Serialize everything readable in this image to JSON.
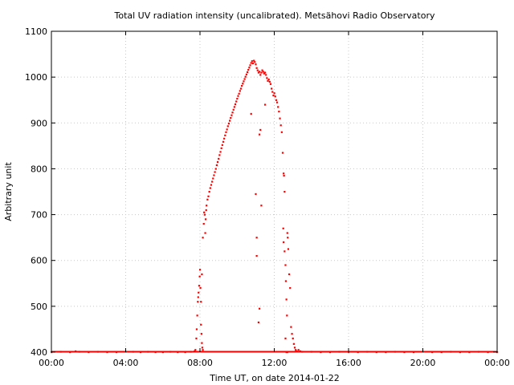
{
  "chart_data": {
    "type": "scatter",
    "title": "Total UV radiation intensity (uncalibrated). Metsähovi Radio Observatory",
    "xlabel": "Time UT, on date 2014-01-22",
    "ylabel": "Arbitrary unit",
    "xlim": [
      0,
      24
    ],
    "ylim": [
      400,
      1100
    ],
    "x_tick_labels": [
      "00:00",
      "04:00",
      "08:00",
      "12:00",
      "16:00",
      "20:00",
      "00:00"
    ],
    "x_tick_values": [
      0,
      4,
      8,
      12,
      16,
      20,
      24
    ],
    "y_ticks": [
      400,
      500,
      600,
      700,
      800,
      900,
      1000,
      1100
    ],
    "grid": true,
    "marker_color": "#ff0000",
    "points": [
      [
        0.0,
        400
      ],
      [
        0.5,
        401
      ],
      [
        1.0,
        400
      ],
      [
        1.3,
        402
      ],
      [
        1.5,
        401
      ],
      [
        2.0,
        400
      ],
      [
        2.5,
        401
      ],
      [
        3.0,
        400
      ],
      [
        3.5,
        400
      ],
      [
        4.0,
        401
      ],
      [
        4.4,
        401
      ],
      [
        4.8,
        400
      ],
      [
        5.2,
        401
      ],
      [
        5.6,
        400
      ],
      [
        6.0,
        400
      ],
      [
        6.4,
        401
      ],
      [
        6.8,
        400
      ],
      [
        7.2,
        400
      ],
      [
        7.5,
        401
      ],
      [
        7.7,
        402
      ],
      [
        7.75,
        405
      ],
      [
        7.8,
        430
      ],
      [
        7.82,
        450
      ],
      [
        7.85,
        480
      ],
      [
        7.88,
        510
      ],
      [
        7.9,
        520
      ],
      [
        7.92,
        530
      ],
      [
        7.95,
        545
      ],
      [
        7.98,
        565
      ],
      [
        8.0,
        580
      ],
      [
        8.02,
        540
      ],
      [
        8.05,
        510
      ],
      [
        8.08,
        440
      ],
      [
        8.1,
        420
      ],
      [
        8.12,
        410
      ],
      [
        8.15,
        405
      ],
      [
        8.05,
        460
      ],
      [
        8.1,
        570
      ],
      [
        8.15,
        650
      ],
      [
        8.2,
        680
      ],
      [
        8.22,
        705
      ],
      [
        8.25,
        700
      ],
      [
        8.28,
        660
      ],
      [
        8.3,
        690
      ],
      [
        8.33,
        710
      ],
      [
        8.35,
        720
      ],
      [
        8.4,
        733
      ],
      [
        8.45,
        740
      ],
      [
        8.5,
        750
      ],
      [
        8.55,
        758
      ],
      [
        8.6,
        765
      ],
      [
        8.65,
        772
      ],
      [
        8.7,
        779
      ],
      [
        8.75,
        786
      ],
      [
        8.8,
        793
      ],
      [
        8.85,
        800
      ],
      [
        8.9,
        808
      ],
      [
        8.95,
        815
      ],
      [
        9.0,
        822
      ],
      [
        9.05,
        830
      ],
      [
        9.1,
        837
      ],
      [
        9.15,
        845
      ],
      [
        9.2,
        852
      ],
      [
        9.25,
        859
      ],
      [
        9.3,
        866
      ],
      [
        9.35,
        873
      ],
      [
        9.4,
        880
      ],
      [
        9.45,
        886
      ],
      [
        9.5,
        893
      ],
      [
        9.55,
        899
      ],
      [
        9.6,
        905
      ],
      [
        9.65,
        911
      ],
      [
        9.7,
        917
      ],
      [
        9.75,
        923
      ],
      [
        9.8,
        929
      ],
      [
        9.85,
        935
      ],
      [
        9.9,
        941
      ],
      [
        9.95,
        947
      ],
      [
        10.0,
        953
      ],
      [
        10.05,
        959
      ],
      [
        10.1,
        964
      ],
      [
        10.15,
        970
      ],
      [
        10.2,
        975
      ],
      [
        10.25,
        981
      ],
      [
        10.3,
        986
      ],
      [
        10.35,
        991
      ],
      [
        10.4,
        996
      ],
      [
        10.45,
        1001
      ],
      [
        10.5,
        1006
      ],
      [
        10.55,
        1011
      ],
      [
        10.6,
        1016
      ],
      [
        10.65,
        1021
      ],
      [
        10.7,
        1026
      ],
      [
        10.75,
        1031
      ],
      [
        10.8,
        1035
      ],
      [
        10.85,
        1030
      ],
      [
        10.9,
        1036
      ],
      [
        10.95,
        1033
      ],
      [
        11.0,
        1028
      ],
      [
        11.05,
        1020
      ],
      [
        11.1,
        1015
      ],
      [
        11.15,
        1010
      ],
      [
        11.2,
        1012
      ],
      [
        11.25,
        1005
      ],
      [
        11.3,
        1010
      ],
      [
        11.35,
        1015
      ],
      [
        11.4,
        1012
      ],
      [
        11.45,
        1008
      ],
      [
        11.5,
        1010
      ],
      [
        11.55,
        1005
      ],
      [
        11.6,
        998
      ],
      [
        11.65,
        992
      ],
      [
        11.7,
        995
      ],
      [
        11.75,
        990
      ],
      [
        11.8,
        985
      ],
      [
        11.85,
        975
      ],
      [
        11.9,
        968
      ],
      [
        11.95,
        960
      ],
      [
        12.0,
        965
      ],
      [
        12.05,
        958
      ],
      [
        12.1,
        950
      ],
      [
        12.15,
        945
      ],
      [
        12.2,
        935
      ],
      [
        12.25,
        925
      ],
      [
        12.3,
        910
      ],
      [
        12.35,
        895
      ],
      [
        12.4,
        880
      ],
      [
        10.75,
        920
      ],
      [
        11.0,
        745
      ],
      [
        11.2,
        875
      ],
      [
        11.25,
        885
      ],
      [
        11.3,
        720
      ],
      [
        11.05,
        650
      ],
      [
        11.05,
        610
      ],
      [
        11.15,
        465
      ],
      [
        11.2,
        495
      ],
      [
        11.5,
        940
      ],
      [
        12.45,
        835
      ],
      [
        12.5,
        790
      ],
      [
        12.52,
        785
      ],
      [
        12.55,
        750
      ],
      [
        12.48,
        670
      ],
      [
        12.5,
        640
      ],
      [
        12.55,
        620
      ],
      [
        12.6,
        590
      ],
      [
        12.62,
        555
      ],
      [
        12.65,
        515
      ],
      [
        12.68,
        480
      ],
      [
        12.7,
        660
      ],
      [
        12.72,
        650
      ],
      [
        12.75,
        625
      ],
      [
        12.8,
        570
      ],
      [
        12.85,
        540
      ],
      [
        12.9,
        455
      ],
      [
        12.95,
        440
      ],
      [
        13.0,
        430
      ],
      [
        13.05,
        418
      ],
      [
        13.1,
        410
      ],
      [
        13.15,
        405
      ],
      [
        13.2,
        402
      ],
      [
        13.3,
        405
      ],
      [
        13.4,
        402
      ],
      [
        13.5,
        401
      ],
      [
        12.6,
        430
      ],
      [
        12.65,
        400
      ],
      [
        12.7,
        400
      ],
      [
        14.0,
        401
      ],
      [
        14.5,
        400
      ],
      [
        15.0,
        400
      ],
      [
        15.5,
        401
      ],
      [
        16.0,
        400
      ],
      [
        16.5,
        400
      ],
      [
        17.0,
        401
      ],
      [
        17.5,
        400
      ],
      [
        18.0,
        400
      ],
      [
        18.5,
        401
      ],
      [
        19.0,
        400
      ],
      [
        19.5,
        400
      ],
      [
        20.0,
        401
      ],
      [
        20.5,
        400
      ],
      [
        21.0,
        400
      ],
      [
        21.5,
        401
      ],
      [
        22.0,
        400
      ],
      [
        22.5,
        400
      ],
      [
        23.0,
        401
      ],
      [
        23.5,
        400
      ],
      [
        24.0,
        400
      ]
    ]
  }
}
